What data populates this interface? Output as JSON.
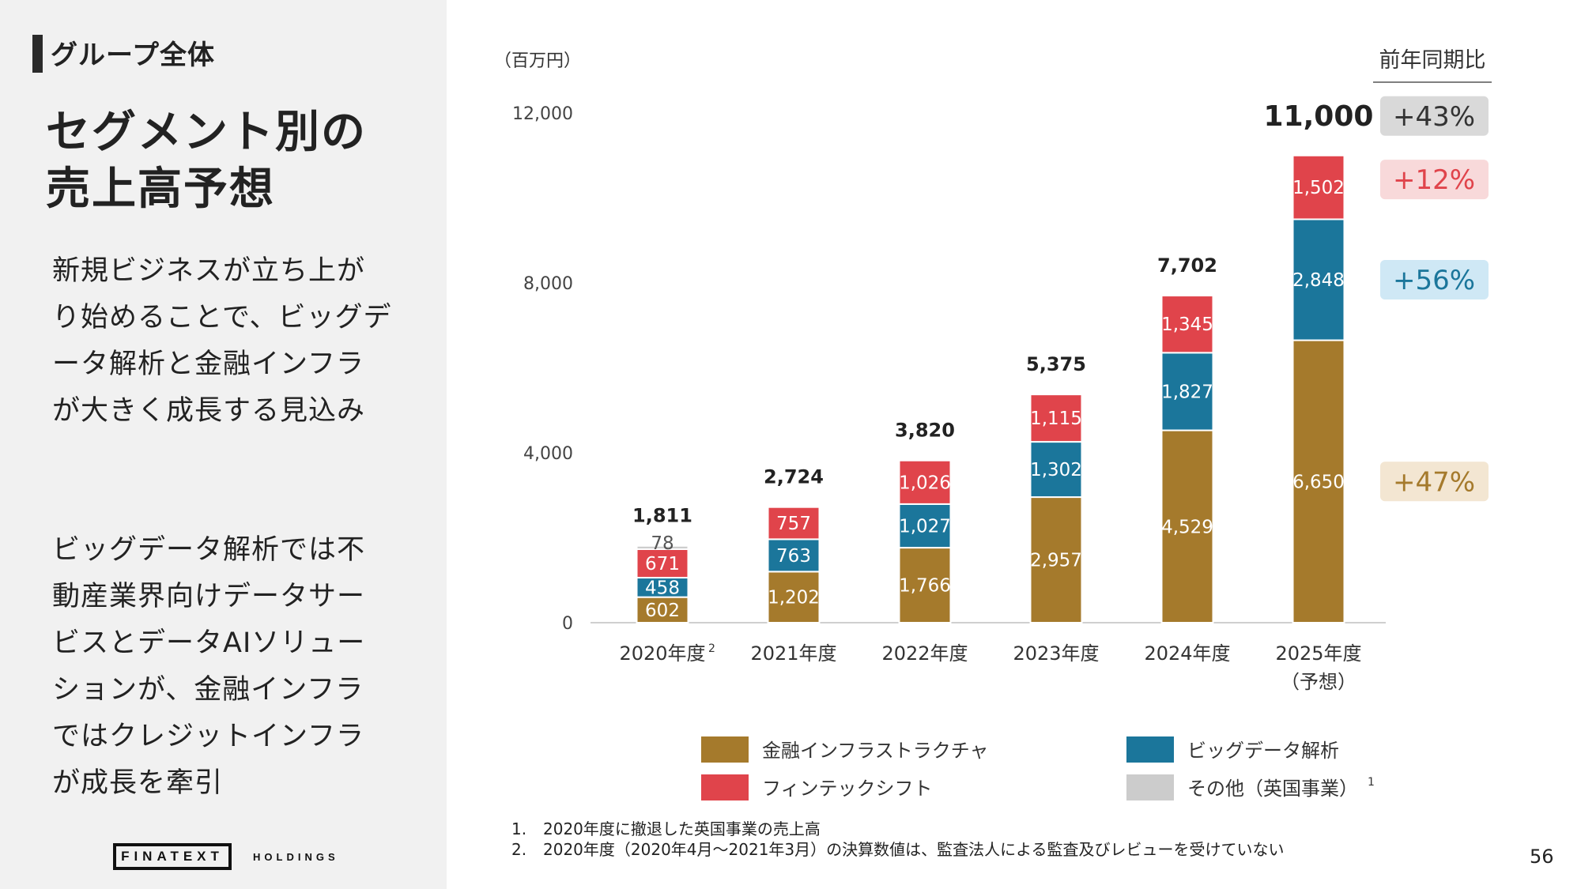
{
  "left_panel": {
    "section_label": "グループ全体",
    "title_line1": "セグメント別の",
    "title_line2": "売上高予想",
    "description_1": "新規ビジネスが立ち上がり始めることで、ビッグデータ解析と金融インフラが大きく成長する見込み",
    "description_2": "ビッグデータ解析では不動産業界向けデータサービスとデータAIソリューションが、金融インフラではクレジットインフラが成長を牽引",
    "brand": "FINATEXT",
    "brand_sub": "HOLDINGS"
  },
  "chart_data": {
    "type": "bar",
    "stacked": true,
    "unit_label": "（百万円）",
    "categories": [
      {
        "label": "2020年度",
        "sup": "2",
        "sub": ""
      },
      {
        "label": "2021年度",
        "sup": "",
        "sub": ""
      },
      {
        "label": "2022年度",
        "sup": "",
        "sub": ""
      },
      {
        "label": "2023年度",
        "sup": "",
        "sub": ""
      },
      {
        "label": "2024年度",
        "sup": "",
        "sub": ""
      },
      {
        "label": "2025年度",
        "sup": "",
        "sub": "（予想）"
      }
    ],
    "series": [
      {
        "name": "金融インフラストラクチャ",
        "color": "#a57a2c",
        "values": [
          602,
          1202,
          1766,
          2957,
          4529,
          6650
        ]
      },
      {
        "name": "ビッグデータ解析",
        "color": "#1b769b",
        "values": [
          458,
          763,
          1027,
          1302,
          1827,
          2848
        ]
      },
      {
        "name": "フィンテックシフト",
        "color": "#e0444b",
        "values": [
          671,
          757,
          1026,
          1115,
          1345,
          1502
        ]
      },
      {
        "name": "その他（英国事業）",
        "sup": "1",
        "color": "#cccccc",
        "values": [
          78,
          0,
          0,
          0,
          0,
          0
        ]
      }
    ],
    "value_labels": [
      [
        "602",
        "1,202",
        "1,766",
        "2,957",
        "4,529",
        "6,650"
      ],
      [
        "458",
        "763",
        "1,027",
        "1,302",
        "1,827",
        "2,848"
      ],
      [
        "671",
        "757",
        "1,026",
        "1,115",
        "1,345",
        "1,502"
      ],
      [
        "78",
        "",
        "",
        "",
        "",
        ""
      ]
    ],
    "totals": [
      1811,
      2724,
      3820,
      5375,
      7702,
      11000
    ],
    "total_labels": [
      "1,811",
      "2,724",
      "3,820",
      "5,375",
      "7,702",
      "11,000"
    ],
    "yticks": [
      0,
      4000,
      8000,
      12000
    ],
    "ytick_labels": [
      "0",
      "4,000",
      "8,000",
      "12,000"
    ],
    "ylim": [
      0,
      12000
    ],
    "yoy": {
      "header": "前年同期比",
      "items": [
        {
          "label": "+43%",
          "anchor": "total",
          "bg": "#d9d9d9",
          "color": "#333333"
        },
        {
          "label": "+12%",
          "anchor": 2,
          "bg": "#f8d9da",
          "color": "#e0444b"
        },
        {
          "label": "+56%",
          "anchor": 1,
          "bg": "#cfe8f5",
          "color": "#1b769b"
        },
        {
          "label": "+47%",
          "anchor": 0,
          "bg": "#f3e6d2",
          "color": "#a57a2c"
        }
      ]
    },
    "legend_position": "bottom"
  },
  "notes": [
    {
      "num": "1.",
      "text": "2020年度に撤退した英国事業の売上高"
    },
    {
      "num": "2.",
      "text": "2020年度（2020年4月～2021年3月）の決算数値は、監査法人による監査及びレビューを受けていない"
    }
  ],
  "page_number": "56"
}
